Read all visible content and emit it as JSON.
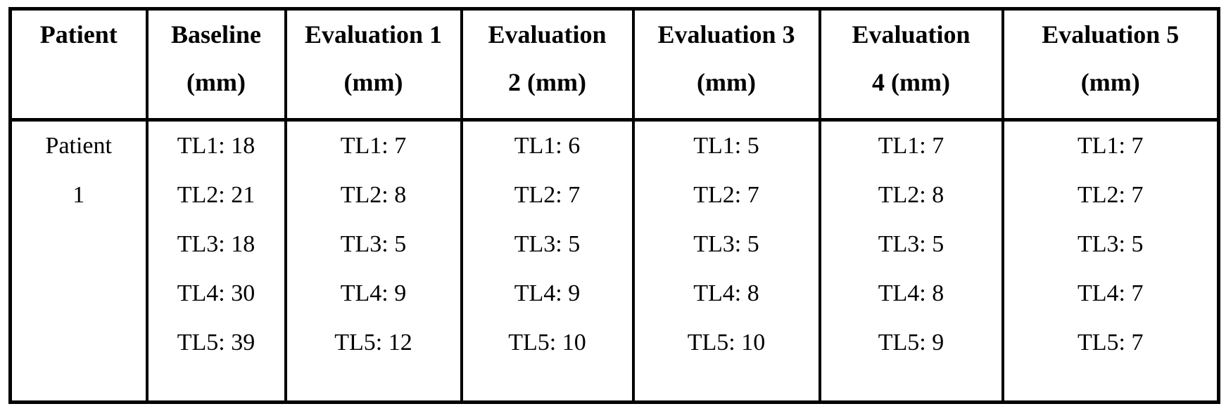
{
  "colors": {
    "border": "#000000",
    "background": "#ffffff",
    "text": "#000000"
  },
  "table": {
    "headers": [
      {
        "line1": "Patient",
        "line2": ""
      },
      {
        "line1": "Baseline",
        "line2": "(mm)"
      },
      {
        "line1": "Evaluation 1",
        "line2": "(mm)"
      },
      {
        "line1": "Evaluation",
        "line2": "2 (mm)"
      },
      {
        "line1": "Evaluation 3",
        "line2": "(mm)"
      },
      {
        "line1": "Evaluation",
        "line2": "4 (mm)"
      },
      {
        "line1": "Evaluation 5",
        "line2": "(mm)"
      }
    ],
    "row": {
      "patient": {
        "line1": "Patient",
        "line2": "1"
      },
      "baseline": [
        "TL1: 18",
        "TL2: 21",
        "TL3: 18",
        "TL4: 30",
        "TL5: 39"
      ],
      "evaluation1": [
        "TL1: 7",
        "TL2: 8",
        "TL3: 5",
        "TL4: 9",
        "TL5: 12"
      ],
      "evaluation2": [
        "TL1: 6",
        "TL2: 7",
        "TL3: 5",
        "TL4: 9",
        "TL5: 10"
      ],
      "evaluation3": [
        "TL1: 5",
        "TL2: 7",
        "TL3: 5",
        "TL4: 8",
        "TL5: 10"
      ],
      "evaluation4": [
        "TL1: 7",
        "TL2: 8",
        "TL3: 5",
        "TL4: 8",
        "TL5: 9"
      ],
      "evaluation5": [
        "TL1: 7",
        "TL2: 7",
        "TL3: 5",
        "TL4: 7",
        "TL5: 7"
      ]
    }
  },
  "chart_data": {
    "type": "table",
    "title": "",
    "columns": [
      "Patient",
      "Baseline (mm)",
      "Evaluation 1 (mm)",
      "Evaluation 2 (mm)",
      "Evaluation 3 (mm)",
      "Evaluation 4 (mm)",
      "Evaluation 5 (mm)"
    ],
    "rows": [
      {
        "patient": "Patient 1",
        "baseline_mm": {
          "TL1": 18,
          "TL2": 21,
          "TL3": 18,
          "TL4": 30,
          "TL5": 39
        },
        "evaluation1_mm": {
          "TL1": 7,
          "TL2": 8,
          "TL3": 5,
          "TL4": 9,
          "TL5": 12
        },
        "evaluation2_mm": {
          "TL1": 6,
          "TL2": 7,
          "TL3": 5,
          "TL4": 9,
          "TL5": 10
        },
        "evaluation3_mm": {
          "TL1": 5,
          "TL2": 7,
          "TL3": 5,
          "TL4": 8,
          "TL5": 10
        },
        "evaluation4_mm": {
          "TL1": 7,
          "TL2": 8,
          "TL3": 5,
          "TL4": 8,
          "TL5": 9
        },
        "evaluation5_mm": {
          "TL1": 7,
          "TL2": 7,
          "TL3": 5,
          "TL4": 7,
          "TL5": 7
        }
      }
    ]
  }
}
